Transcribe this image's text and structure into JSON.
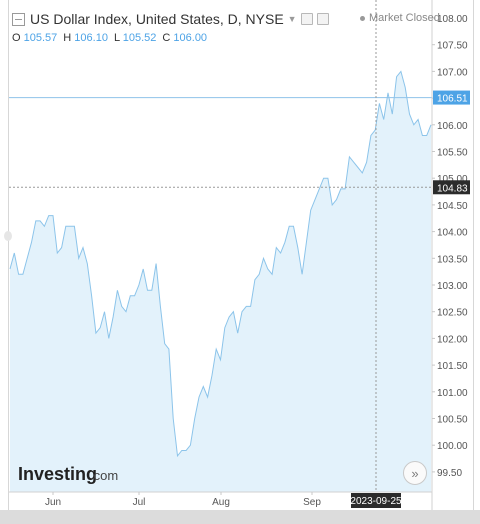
{
  "header": {
    "title": "US Dollar Index, United States, D, NYSE",
    "status": "Market Closed",
    "ohlc": [
      {
        "key": "O",
        "value": "105.57"
      },
      {
        "key": "H",
        "value": "106.10"
      },
      {
        "key": "L",
        "value": "105.52"
      },
      {
        "key": "C",
        "value": "106.00"
      }
    ]
  },
  "logo": {
    "text_main": "Investing",
    "text_suffix": ".com"
  },
  "icons": [
    "collapse-icon",
    "caret-down-icon",
    "settings-icon",
    "close-icon",
    "scroll-right-icon"
  ],
  "colors": {
    "line": "#8cc4ea",
    "fill": "#e3f2fb",
    "accent": "#4da3e6",
    "crosshair_label": "#2b2b2b"
  },
  "chart_data": {
    "type": "area",
    "y_ticks": [
      "108.00",
      "107.50",
      "107.00",
      "106.50",
      "106.00",
      "105.50",
      "105.00",
      "104.50",
      "104.00",
      "103.50",
      "103.00",
      "102.50",
      "102.00",
      "101.50",
      "101.00",
      "100.50",
      "100.00",
      "99.50"
    ],
    "ylim": [
      99.5,
      108.0
    ],
    "x_ticks": [
      "Jun",
      "Jul",
      "Aug",
      "Sep"
    ],
    "price_label": "106.51",
    "crosshair_price": "104.83",
    "crosshair_date": "2023-09-25",
    "series": [
      {
        "values": [
          103.3,
          103.6,
          103.2,
          103.2,
          103.5,
          103.8,
          104.2,
          104.2,
          104.1,
          104.3,
          104.3,
          103.6,
          103.7,
          104.1,
          104.1,
          104.1,
          103.5,
          103.7,
          103.4,
          102.8,
          102.1,
          102.2,
          102.5,
          102.0,
          102.4,
          102.9,
          102.6,
          102.5,
          102.8,
          102.8,
          103.0,
          103.3,
          102.9,
          102.9,
          103.4,
          102.6,
          101.9,
          101.8,
          100.5,
          99.8,
          99.9,
          99.9,
          100.0,
          100.5,
          100.9,
          101.1,
          100.9,
          101.3,
          101.8,
          101.6,
          102.2,
          102.4,
          102.5,
          102.1,
          102.5,
          102.6,
          102.6,
          103.1,
          103.2,
          103.5,
          103.3,
          103.2,
          103.7,
          103.6,
          103.8,
          104.1,
          104.1,
          103.7,
          103.2,
          103.8,
          104.4,
          104.6,
          104.8,
          105.0,
          105.0,
          104.5,
          104.6,
          104.8,
          104.8,
          105.4,
          105.3,
          105.2,
          105.1,
          105.3,
          105.8,
          105.9,
          106.4,
          106.1,
          106.6,
          106.2,
          106.9,
          107.0,
          106.7,
          106.2,
          106.0,
          106.1,
          105.8,
          105.8,
          106.0
        ]
      }
    ]
  }
}
